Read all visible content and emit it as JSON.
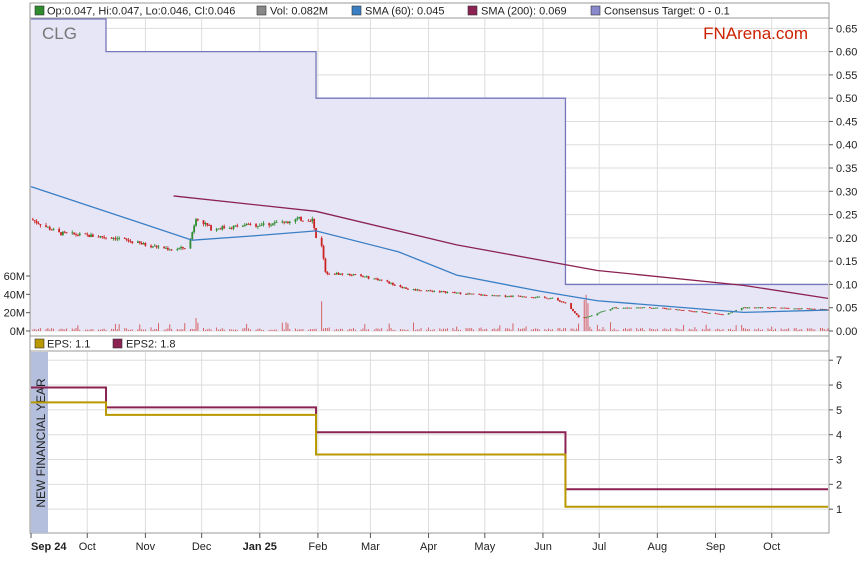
{
  "chart_data": [
    {
      "type": "candlestick",
      "symbol": "CLG",
      "watermark": "FNArena.com",
      "legend": {
        "ohlc": "Op:0.047, Hi:0.047, Lo:0.046, Cl:0.046",
        "vol": "Vol: 0.082M",
        "sma60": "SMA (60): 0.045",
        "sma200": "SMA (200): 0.069",
        "target": "Consensus Target: 0 - 0.1"
      },
      "colors": {
        "up": "#2e8b2e",
        "down": "#cc2222",
        "sma60": "#3a7fc4",
        "sma200": "#8b2252",
        "target_fill": "#e6e6f7",
        "target_line": "#7777bb",
        "volume": "#d55555",
        "ohlc_box": "#2e8b2e",
        "vol_box": "#888888",
        "sma60_box": "#3a7fc4",
        "sma200_box": "#8b2252",
        "target_box": "#8888cc",
        "watermark": "#cc2200"
      },
      "y_ticks": [
        "0.65",
        "0.60",
        "0.55",
        "0.50",
        "0.45",
        "0.40",
        "0.35",
        "0.30",
        "0.25",
        "0.20",
        "0.15",
        "0.10",
        "0.05",
        "0.00"
      ],
      "ylim": [
        0,
        0.67
      ],
      "volume_ticks": [
        "60M",
        "40M",
        "20M",
        "0M"
      ],
      "consensus_target": [
        {
          "from": "2024-09-01",
          "to": "2024-10-11",
          "value": 0.7
        },
        {
          "from": "2024-10-11",
          "to": "2025-01-31",
          "value": 0.6
        },
        {
          "from": "2025-01-31",
          "to": "2025-06-13",
          "value": 0.5
        },
        {
          "from": "2025-06-13",
          "to": "2025-10-31",
          "value": 0.1
        }
      ],
      "sma200": [
        {
          "date": "2024-11-16",
          "value": 0.29
        },
        {
          "date": "2025-01-31",
          "value": 0.257
        },
        {
          "date": "2025-04-16",
          "value": 0.185
        },
        {
          "date": "2025-06-30",
          "value": 0.13
        },
        {
          "date": "2025-09-16",
          "value": 0.098
        },
        {
          "date": "2025-10-31",
          "value": 0.07
        }
      ],
      "sma60": [
        {
          "date": "2024-09-01",
          "value": 0.31
        },
        {
          "date": "2024-10-16",
          "value": 0.25
        },
        {
          "date": "2024-11-26",
          "value": 0.195
        },
        {
          "date": "2024-12-31",
          "value": 0.205
        },
        {
          "date": "2025-01-31",
          "value": 0.215
        },
        {
          "date": "2025-03-16",
          "value": 0.17
        },
        {
          "date": "2025-04-16",
          "value": 0.12
        },
        {
          "date": "2025-05-31",
          "value": 0.085
        },
        {
          "date": "2025-06-30",
          "value": 0.065
        },
        {
          "date": "2025-08-16",
          "value": 0.05
        },
        {
          "date": "2025-09-16",
          "value": 0.04
        },
        {
          "date": "2025-10-31",
          "value": 0.045
        }
      ],
      "price_path": [
        {
          "date": "2024-09-01",
          "value": 0.24
        },
        {
          "date": "2024-09-16",
          "value": 0.21
        },
        {
          "date": "2024-10-01",
          "value": 0.205
        },
        {
          "date": "2024-10-16",
          "value": 0.2
        },
        {
          "date": "2024-11-01",
          "value": 0.185
        },
        {
          "date": "2024-11-16",
          "value": 0.175
        },
        {
          "date": "2024-11-24",
          "value": 0.18
        },
        {
          "date": "2024-11-28",
          "value": 0.245
        },
        {
          "date": "2024-12-06",
          "value": 0.22
        },
        {
          "date": "2024-12-21",
          "value": 0.225
        },
        {
          "date": "2025-01-06",
          "value": 0.23
        },
        {
          "date": "2025-01-21",
          "value": 0.24
        },
        {
          "date": "2025-01-29",
          "value": 0.24
        },
        {
          "date": "2025-01-31",
          "value": 0.2
        },
        {
          "date": "2025-02-03",
          "value": 0.185
        },
        {
          "date": "2025-02-05",
          "value": 0.125
        },
        {
          "date": "2025-02-21",
          "value": 0.12
        },
        {
          "date": "2025-03-06",
          "value": 0.11
        },
        {
          "date": "2025-03-21",
          "value": 0.09
        },
        {
          "date": "2025-04-06",
          "value": 0.085
        },
        {
          "date": "2025-04-21",
          "value": 0.08
        },
        {
          "date": "2025-05-06",
          "value": 0.075
        },
        {
          "date": "2025-05-21",
          "value": 0.075
        },
        {
          "date": "2025-06-06",
          "value": 0.07
        },
        {
          "date": "2025-06-13",
          "value": 0.06
        },
        {
          "date": "2025-06-21",
          "value": 0.025
        },
        {
          "date": "2025-07-01",
          "value": 0.04
        },
        {
          "date": "2025-07-09",
          "value": 0.05
        },
        {
          "date": "2025-08-01",
          "value": 0.05
        },
        {
          "date": "2025-08-26",
          "value": 0.04
        },
        {
          "date": "2025-09-06",
          "value": 0.035
        },
        {
          "date": "2025-09-16",
          "value": 0.05
        },
        {
          "date": "2025-10-01",
          "value": 0.05
        },
        {
          "date": "2025-10-31",
          "value": 0.046
        }
      ]
    },
    {
      "type": "line",
      "legend": {
        "eps": "EPS: 1.1",
        "eps2": "EPS2: 1.8"
      },
      "side_label": "NEW FINANCIAL YEAR",
      "colors": {
        "eps": "#b89a00",
        "eps2": "#8b2252",
        "side_label_bg": "#b3bfdc"
      },
      "y_ticks": [
        "7",
        "6",
        "5",
        "4",
        "3",
        "2",
        "1"
      ],
      "ylim": [
        0,
        7
      ],
      "eps": [
        {
          "from": "2024-09-01",
          "to": "2024-10-11",
          "value": 5.3
        },
        {
          "from": "2024-10-11",
          "to": "2025-01-31",
          "value": 4.8
        },
        {
          "from": "2025-01-31",
          "to": "2025-06-13",
          "value": 3.2
        },
        {
          "from": "2025-06-13",
          "to": "2025-10-31",
          "value": 1.1
        }
      ],
      "eps2": [
        {
          "from": "2024-09-01",
          "to": "2024-10-11",
          "value": 5.9
        },
        {
          "from": "2024-10-11",
          "to": "2025-01-31",
          "value": 5.1
        },
        {
          "from": "2025-01-31",
          "to": "2025-06-13",
          "value": 4.1
        },
        {
          "from": "2025-06-13",
          "to": "2025-10-31",
          "value": 1.8
        }
      ]
    }
  ],
  "x_axis": {
    "start": "2024-09-01",
    "end": "2025-10-31",
    "ticks": [
      {
        "label": "Sep 24",
        "date": "2024-09-01",
        "bold": true
      },
      {
        "label": "Oct",
        "date": "2024-10-01"
      },
      {
        "label": "Nov",
        "date": "2024-11-01"
      },
      {
        "label": "Dec",
        "date": "2024-12-01"
      },
      {
        "label": "Jan 25",
        "date": "2025-01-01",
        "bold": true
      },
      {
        "label": "Feb",
        "date": "2025-02-01"
      },
      {
        "label": "Mar",
        "date": "2025-03-01"
      },
      {
        "label": "Apr",
        "date": "2025-04-01"
      },
      {
        "label": "May",
        "date": "2025-05-01"
      },
      {
        "label": "Jun",
        "date": "2025-06-01"
      },
      {
        "label": "Jul",
        "date": "2025-07-01"
      },
      {
        "label": "Aug",
        "date": "2025-08-01"
      },
      {
        "label": "Sep",
        "date": "2025-09-01"
      },
      {
        "label": "Oct",
        "date": "2025-10-01"
      }
    ]
  }
}
